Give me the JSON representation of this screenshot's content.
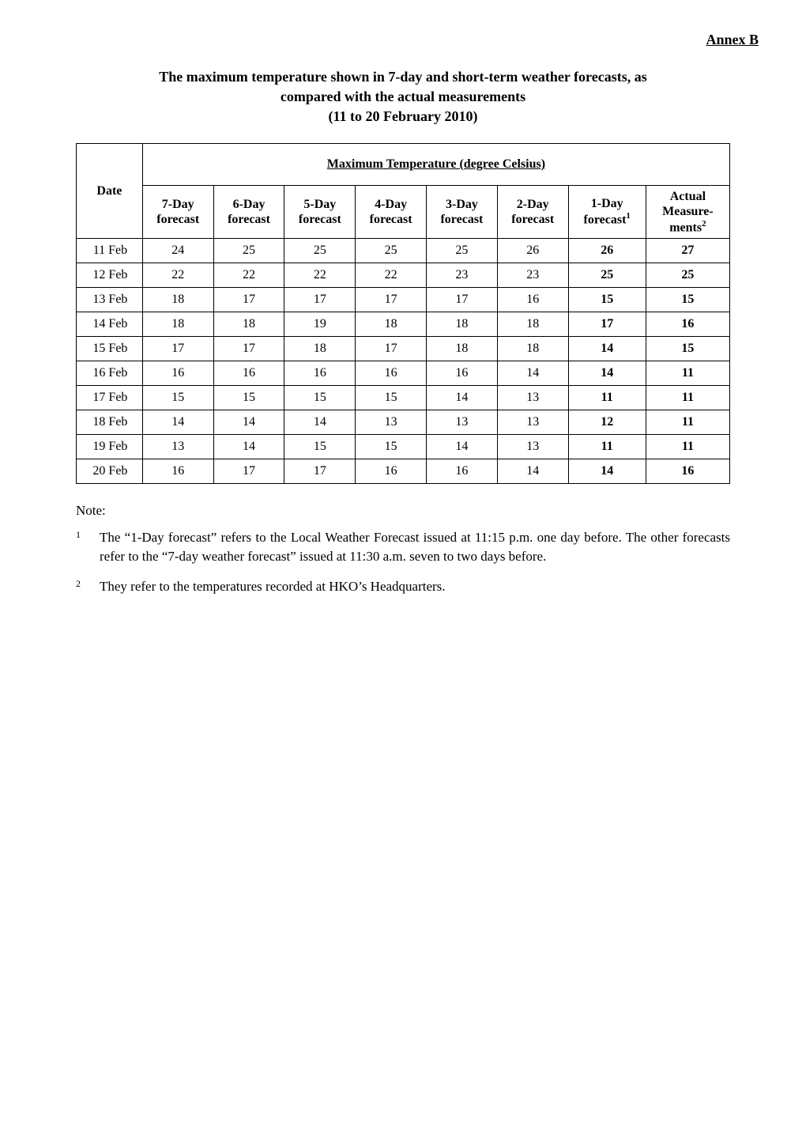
{
  "annex": "Annex B",
  "title_line1": "The maximum temperature shown in 7-day and short-term weather forecasts, as",
  "title_line2": "compared with the actual measurements",
  "title_line3": "(11 to 20 February 2010)",
  "table": {
    "spanning_header": "Maximum Temperature (degree Celsius)",
    "columns": [
      {
        "label": "Date",
        "sub": ""
      },
      {
        "label": "7-Day",
        "sub": "forecast"
      },
      {
        "label": "6-Day",
        "sub": "forecast"
      },
      {
        "label": "5-Day",
        "sub": "forecast"
      },
      {
        "label": "4-Day",
        "sub": "forecast"
      },
      {
        "label": "3-Day",
        "sub": "forecast"
      },
      {
        "label": "2-Day",
        "sub": "forecast"
      },
      {
        "label": "1-Day",
        "sub": "forecast",
        "sup": "1"
      },
      {
        "label": "Actual",
        "sub": "Measure-",
        "sub2": "ments",
        "sup": "2"
      }
    ],
    "rows": [
      {
        "date": "11 Feb",
        "d7": "24",
        "d6": "25",
        "d5": "25",
        "d4": "25",
        "d3": "25",
        "d2": "26",
        "d1": "26",
        "act": "27"
      },
      {
        "date": "12 Feb",
        "d7": "22",
        "d6": "22",
        "d5": "22",
        "d4": "22",
        "d3": "23",
        "d2": "23",
        "d1": "25",
        "act": "25"
      },
      {
        "date": "13 Feb",
        "d7": "18",
        "d6": "17",
        "d5": "17",
        "d4": "17",
        "d3": "17",
        "d2": "16",
        "d1": "15",
        "act": "15"
      },
      {
        "date": "14 Feb",
        "d7": "18",
        "d6": "18",
        "d5": "19",
        "d4": "18",
        "d3": "18",
        "d2": "18",
        "d1": "17",
        "act": "16"
      },
      {
        "date": "15 Feb",
        "d7": "17",
        "d6": "17",
        "d5": "18",
        "d4": "17",
        "d3": "18",
        "d2": "18",
        "d1": "14",
        "act": "15"
      },
      {
        "date": "16 Feb",
        "d7": "16",
        "d6": "16",
        "d5": "16",
        "d4": "16",
        "d3": "16",
        "d2": "14",
        "d1": "14",
        "act": "11"
      },
      {
        "date": "17 Feb",
        "d7": "15",
        "d6": "15",
        "d5": "15",
        "d4": "15",
        "d3": "14",
        "d2": "13",
        "d1": "11",
        "act": "11"
      },
      {
        "date": "18 Feb",
        "d7": "14",
        "d6": "14",
        "d5": "14",
        "d4": "13",
        "d3": "13",
        "d2": "13",
        "d1": "12",
        "act": "11"
      },
      {
        "date": "19 Feb",
        "d7": "13",
        "d6": "14",
        "d5": "15",
        "d4": "15",
        "d3": "14",
        "d2": "13",
        "d1": "11",
        "act": "11"
      },
      {
        "date": "20 Feb",
        "d7": "16",
        "d6": "17",
        "d5": "17",
        "d4": "16",
        "d3": "16",
        "d2": "14",
        "d1": "14",
        "act": "16"
      }
    ]
  },
  "notes": {
    "label": "Note:",
    "items": [
      {
        "num": "1",
        "text": "The “1-Day forecast” refers to the Local Weather Forecast issued at 11:15 p.m. one day before.  The other forecasts refer to the “7-day weather forecast” issued at 11:30 a.m. seven to two days before."
      },
      {
        "num": "2",
        "text": "They refer to the temperatures recorded at HKO’s Headquarters."
      }
    ]
  }
}
